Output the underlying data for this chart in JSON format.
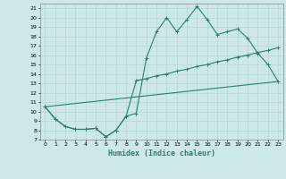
{
  "xlabel": "Humidex (Indice chaleur)",
  "xlim": [
    -0.5,
    23.5
  ],
  "ylim": [
    7,
    21.5
  ],
  "yticks": [
    7,
    8,
    9,
    10,
    11,
    12,
    13,
    14,
    15,
    16,
    17,
    18,
    19,
    20,
    21
  ],
  "xticks": [
    0,
    1,
    2,
    3,
    4,
    5,
    6,
    7,
    8,
    9,
    10,
    11,
    12,
    13,
    14,
    15,
    16,
    17,
    18,
    19,
    20,
    21,
    22,
    23
  ],
  "bg_color": "#cce8e8",
  "grid_color": "#aad0d0",
  "line_color": "#2e7d6e",
  "line1_x": [
    0,
    1,
    2,
    3,
    4,
    5,
    6,
    7,
    8,
    9,
    10,
    11,
    12,
    13,
    14,
    15,
    16,
    17,
    18,
    19,
    20,
    21,
    22,
    23
  ],
  "line1_y": [
    10.5,
    9.2,
    8.4,
    8.1,
    8.1,
    8.2,
    7.3,
    8.0,
    9.5,
    9.8,
    15.7,
    18.5,
    20.0,
    18.5,
    19.8,
    21.2,
    19.8,
    18.2,
    18.5,
    18.8,
    17.8,
    16.2,
    15.0,
    13.2
  ],
  "line2_x": [
    0,
    1,
    2,
    3,
    4,
    5,
    6,
    7,
    8,
    9,
    10,
    11,
    12,
    13,
    14,
    15,
    16,
    17,
    18,
    19,
    20,
    21,
    22,
    23
  ],
  "line2_y": [
    10.5,
    9.2,
    8.4,
    8.1,
    8.1,
    8.2,
    7.3,
    8.0,
    9.5,
    13.3,
    13.5,
    13.8,
    14.0,
    14.3,
    14.5,
    14.8,
    15.0,
    15.3,
    15.5,
    15.8,
    16.0,
    16.3,
    16.5,
    16.8
  ],
  "line3_x": [
    0,
    23
  ],
  "line3_y": [
    10.5,
    13.2
  ]
}
